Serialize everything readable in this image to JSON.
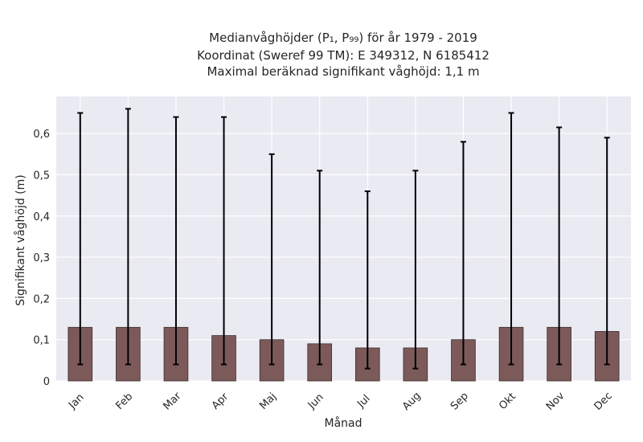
{
  "chart_data": {
    "type": "bar",
    "title_lines": [
      "Medianvåghöjder (P₁, P₉₉) för år 1979 - 2019",
      "Koordinat (Sweref 99 TM): E 349312, N 6185412",
      "Maximal beräknad signifikant våghöjd: 1,1 m"
    ],
    "xlabel": "Månad",
    "ylabel": "Signifikant våghöjd (m)",
    "categories": [
      "Jan",
      "Feb",
      "Mar",
      "Apr",
      "Maj",
      "Jun",
      "Jul",
      "Aug",
      "Sep",
      "Okt",
      "Nov",
      "Dec"
    ],
    "values": [
      0.13,
      0.13,
      0.13,
      0.11,
      0.1,
      0.09,
      0.08,
      0.08,
      0.1,
      0.13,
      0.13,
      0.12
    ],
    "error_low": [
      0.04,
      0.04,
      0.04,
      0.04,
      0.04,
      0.04,
      0.03,
      0.03,
      0.04,
      0.04,
      0.04,
      0.04
    ],
    "error_high": [
      0.65,
      0.66,
      0.64,
      0.64,
      0.55,
      0.51,
      0.46,
      0.51,
      0.58,
      0.65,
      0.615,
      0.59
    ],
    "ylim": [
      0,
      0.69
    ],
    "yticks": [
      0,
      0.1,
      0.2,
      0.3,
      0.4,
      0.5,
      0.6
    ],
    "ytick_labels": [
      "0",
      "0,1",
      "0,2",
      "0,3",
      "0,4",
      "0,5",
      "0,6"
    ],
    "grid": true,
    "colors": {
      "bar": "#7d5a5a",
      "bar_edge": "#3d2a2a",
      "error_bar": "#000000",
      "plot_background": "#eaeaf2",
      "grid": "#ffffff"
    }
  }
}
